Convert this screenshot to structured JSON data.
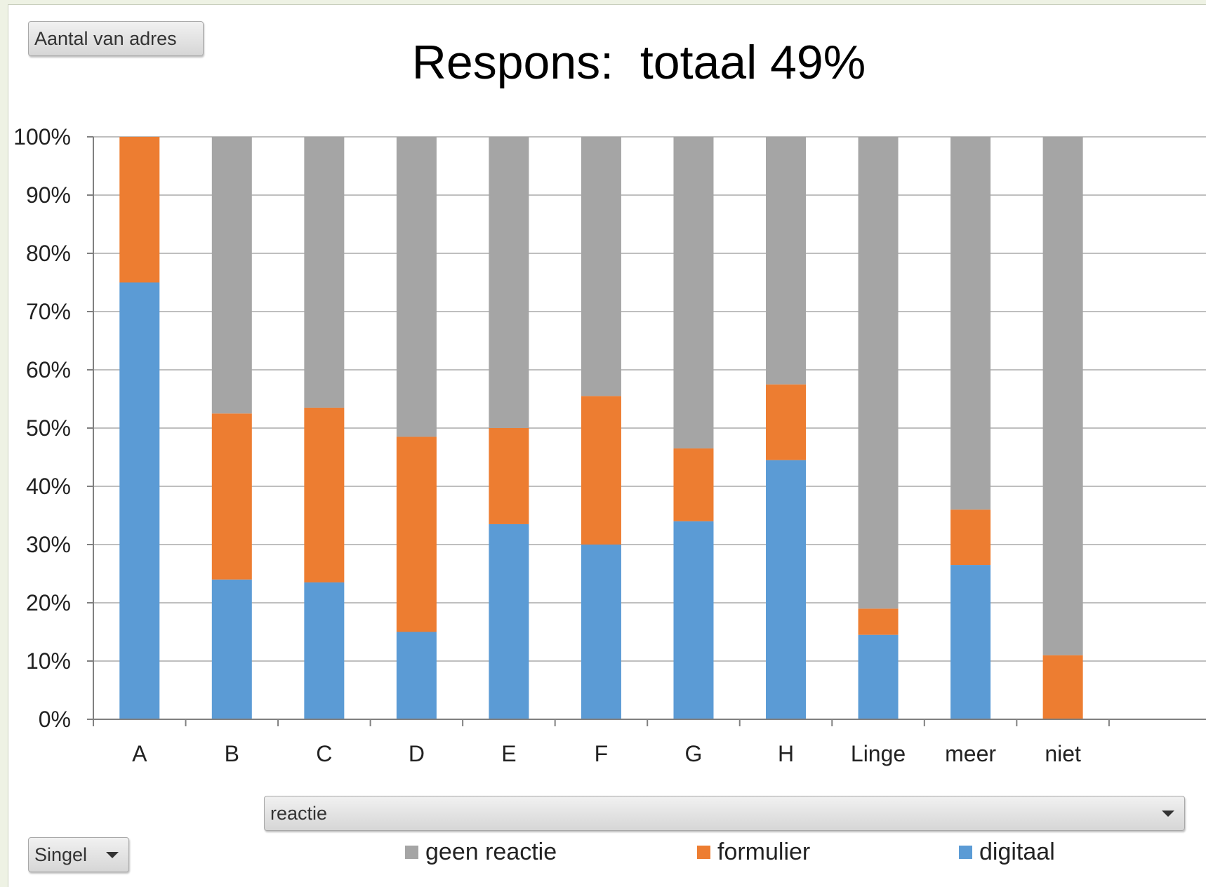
{
  "buttons": {
    "aantal": "Aantal van adres",
    "reactie": "reactie",
    "singel": "Singel"
  },
  "colors": {
    "geen_reactie": "#a5a5a5",
    "formulier": "#ed7d31",
    "digitaal": "#5b9bd5",
    "grid": "#bfbfbf",
    "axis": "#808080"
  },
  "chart_data": {
    "type": "bar",
    "stacked": true,
    "percent_stacked": true,
    "title": "Respons:  totaal 49%",
    "xlabel": "",
    "ylabel": "",
    "ylim": [
      0,
      100
    ],
    "yticks": [
      "0%",
      "10%",
      "20%",
      "30%",
      "40%",
      "50%",
      "60%",
      "70%",
      "80%",
      "90%",
      "100%"
    ],
    "grid": true,
    "legend_position": "bottom",
    "categories": [
      "A",
      "B",
      "C",
      "D",
      "E",
      "F",
      "G",
      "H",
      "Linge",
      "meer",
      "niet"
    ],
    "series": [
      {
        "name": "digitaal",
        "color": "#5b9bd5",
        "values": [
          75,
          24,
          23.5,
          15,
          33.5,
          30,
          34,
          44.5,
          14.5,
          26.5,
          0
        ]
      },
      {
        "name": "formulier",
        "color": "#ed7d31",
        "values": [
          25,
          28.5,
          30,
          33.5,
          16.5,
          25.5,
          12.5,
          13,
          4.5,
          9.5,
          11
        ]
      },
      {
        "name": "geen reactie",
        "color": "#a5a5a5",
        "values": [
          0,
          47.5,
          46.5,
          51.5,
          50,
          44.5,
          53.5,
          42.5,
          81,
          64,
          89
        ]
      }
    ],
    "legend_order": [
      "geen reactie",
      "formulier",
      "digitaal"
    ]
  }
}
